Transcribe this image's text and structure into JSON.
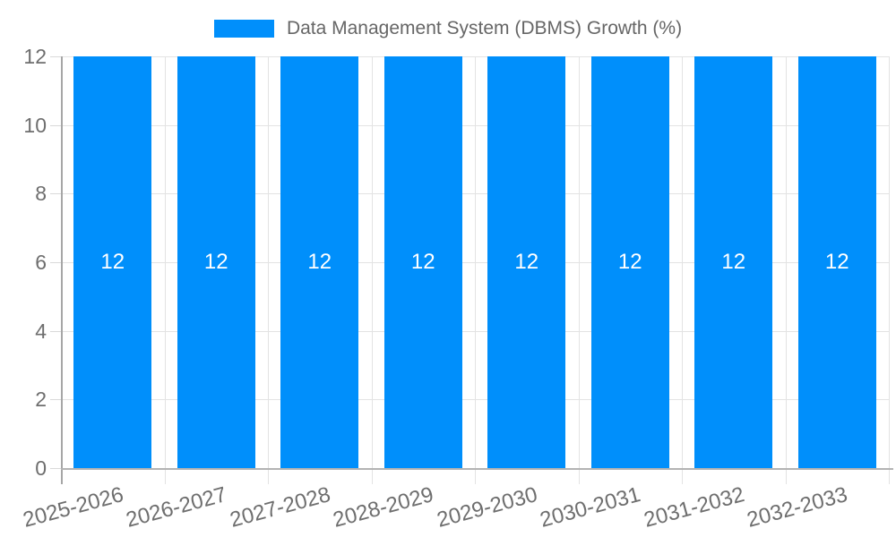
{
  "legend": {
    "label": "Data Management System (DBMS) Growth (%)"
  },
  "chart_data": {
    "type": "bar",
    "title": "Data Management System (DBMS) Growth (%)",
    "categories": [
      "2025-2026",
      "2026-2027",
      "2027-2028",
      "2028-2029",
      "2029-2030",
      "2030-2031",
      "2031-2032",
      "2032-2033"
    ],
    "values": [
      12,
      12,
      12,
      12,
      12,
      12,
      12,
      12
    ],
    "xlabel": "",
    "ylabel": "",
    "ylim": [
      0,
      12
    ],
    "yticks": [
      0,
      2,
      4,
      6,
      8,
      10,
      12
    ],
    "grid": true,
    "legend_position": "top",
    "bar_color": "#008FFB",
    "value_label_color": "#ffffff",
    "axis_label_color": "#6e6e6e",
    "grid_color": "#e3e3e3"
  }
}
